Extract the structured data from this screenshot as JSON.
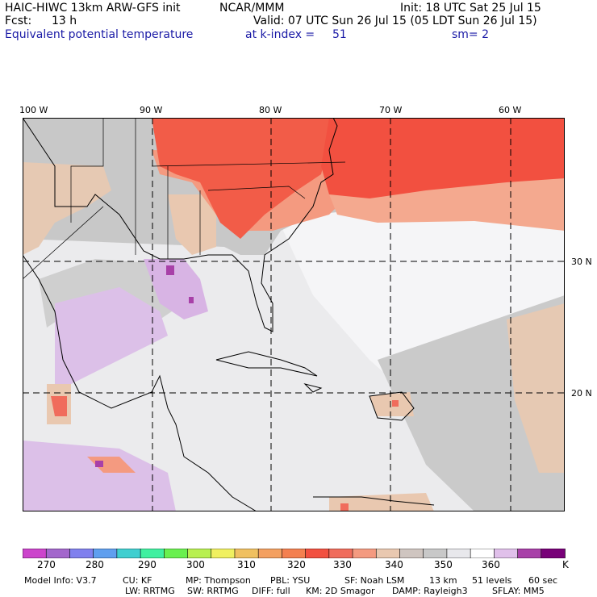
{
  "header": {
    "model": "HAIC-HIWC 13km ARW-GFS init",
    "org": "NCAR/MMM",
    "init": "Init: 18 UTC Sat 25 Jul 15",
    "fcst": "Fcst:",
    "fcst_hours": "13 h",
    "valid": "Valid: 07 UTC Sun 26 Jul 15 (05 LDT Sun 26 Jul 15)",
    "field": "Equivalent potential temperature",
    "level": "at k-index =",
    "level_value": "51",
    "smooth": "sm= 2"
  },
  "map": {
    "lon_labels": [
      "100 W",
      "90 W",
      "80 W",
      "70 W",
      "60 W"
    ],
    "lat_labels": [
      "30 N",
      "20 N"
    ]
  },
  "colorbar": {
    "colors": [
      "#cc44cc",
      "#a366cc",
      "#8080ee",
      "#5f9fef",
      "#3fcfd0",
      "#3ff0a0",
      "#69f04f",
      "#b8f050",
      "#f0f060",
      "#f0c060",
      "#f4a060",
      "#f48050",
      "#f25040",
      "#f06c5c",
      "#f49a80",
      "#e9c8b0",
      "#cfc5c0",
      "#c8c8c8",
      "#e8e8ec",
      "#ffffff",
      "#e0c0ea",
      "#a840a8",
      "#780078"
    ],
    "labels": [
      "270",
      "280",
      "290",
      "300",
      "310",
      "320",
      "330",
      "340",
      "350",
      "360"
    ],
    "units": "K"
  },
  "footer": {
    "line1": [
      "Model Info: V3.7",
      "CU: KF",
      "MP: Thompson",
      "PBL: YSU",
      "SF: Noah LSM",
      "13 km",
      "51 levels",
      "60 sec"
    ],
    "line2": [
      "LW: RRTMG",
      "SW: RRTMG",
      "DIFF: full",
      "KM: 2D Smagor",
      "DAMP: Rayleigh3",
      "SFLAY: MM5"
    ]
  }
}
